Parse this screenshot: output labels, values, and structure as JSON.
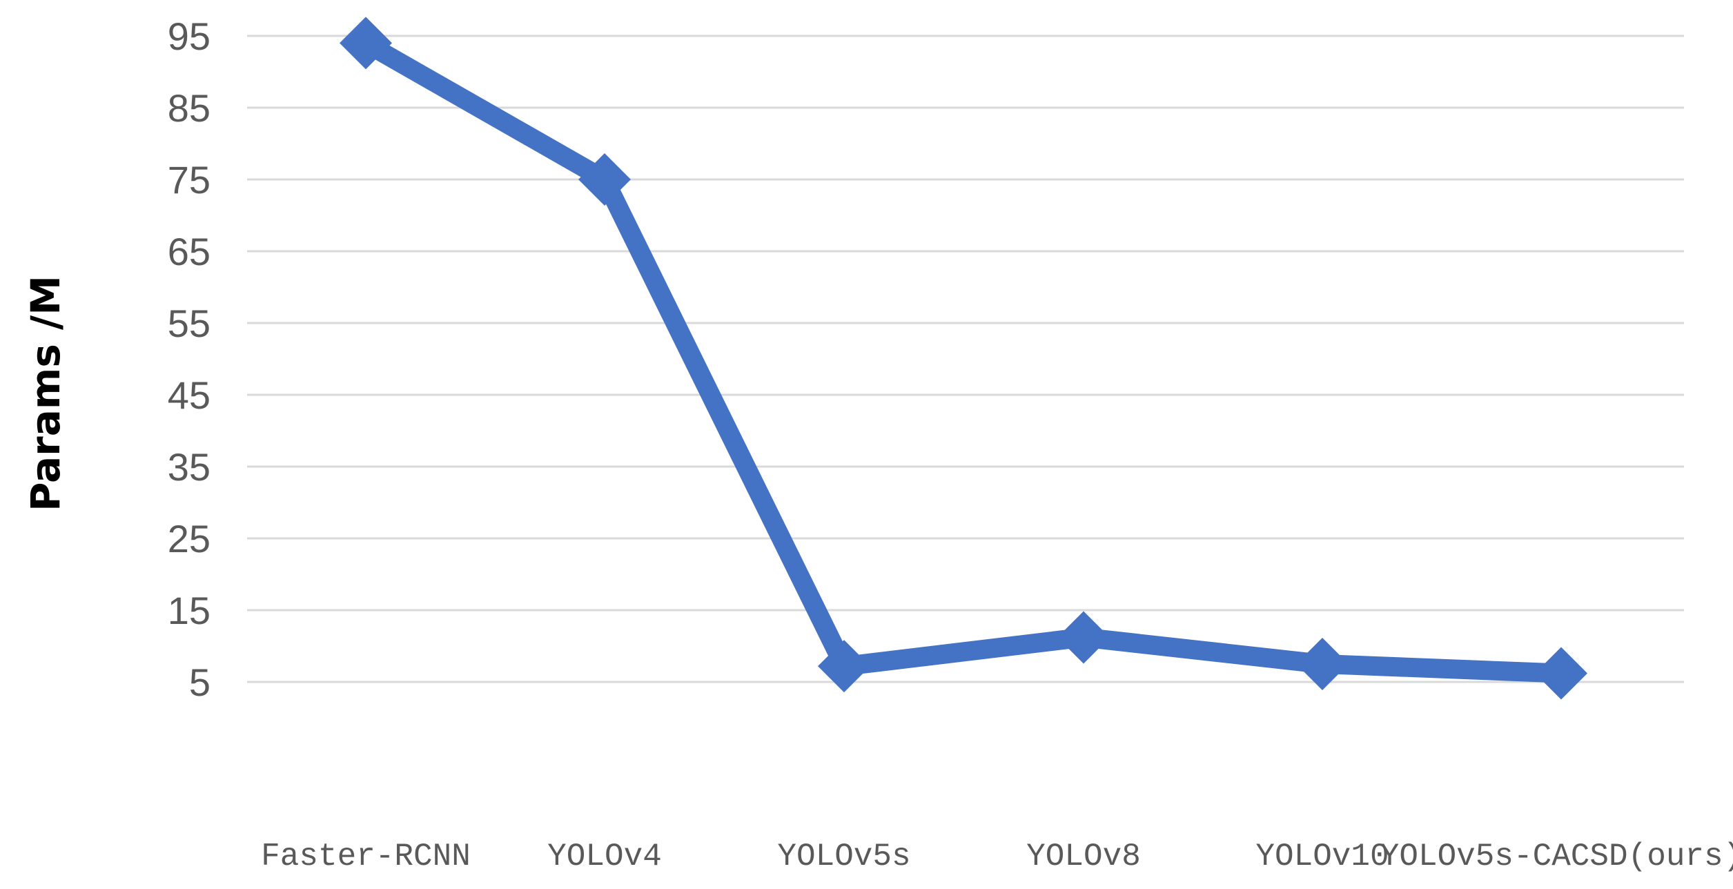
{
  "chart_data": {
    "type": "line",
    "title": "",
    "xlabel": "",
    "ylabel": "Params /M",
    "categories": [
      "Faster-RCNN",
      "YOLOv4",
      "YOLOv5s",
      "YOLOv8",
      "YOLOv10",
      "YOLOv5s-CACSD(ours)"
    ],
    "series": [
      {
        "values": [
          94,
          75,
          7.2,
          11.2,
          7.5,
          6.2
        ],
        "color": "#4472c4",
        "marker": "diamond"
      }
    ],
    "yticks": [
      5,
      15,
      25,
      35,
      45,
      55,
      65,
      75,
      85,
      95
    ],
    "ylim": [
      5,
      95
    ],
    "grid": true,
    "legend": "none"
  }
}
